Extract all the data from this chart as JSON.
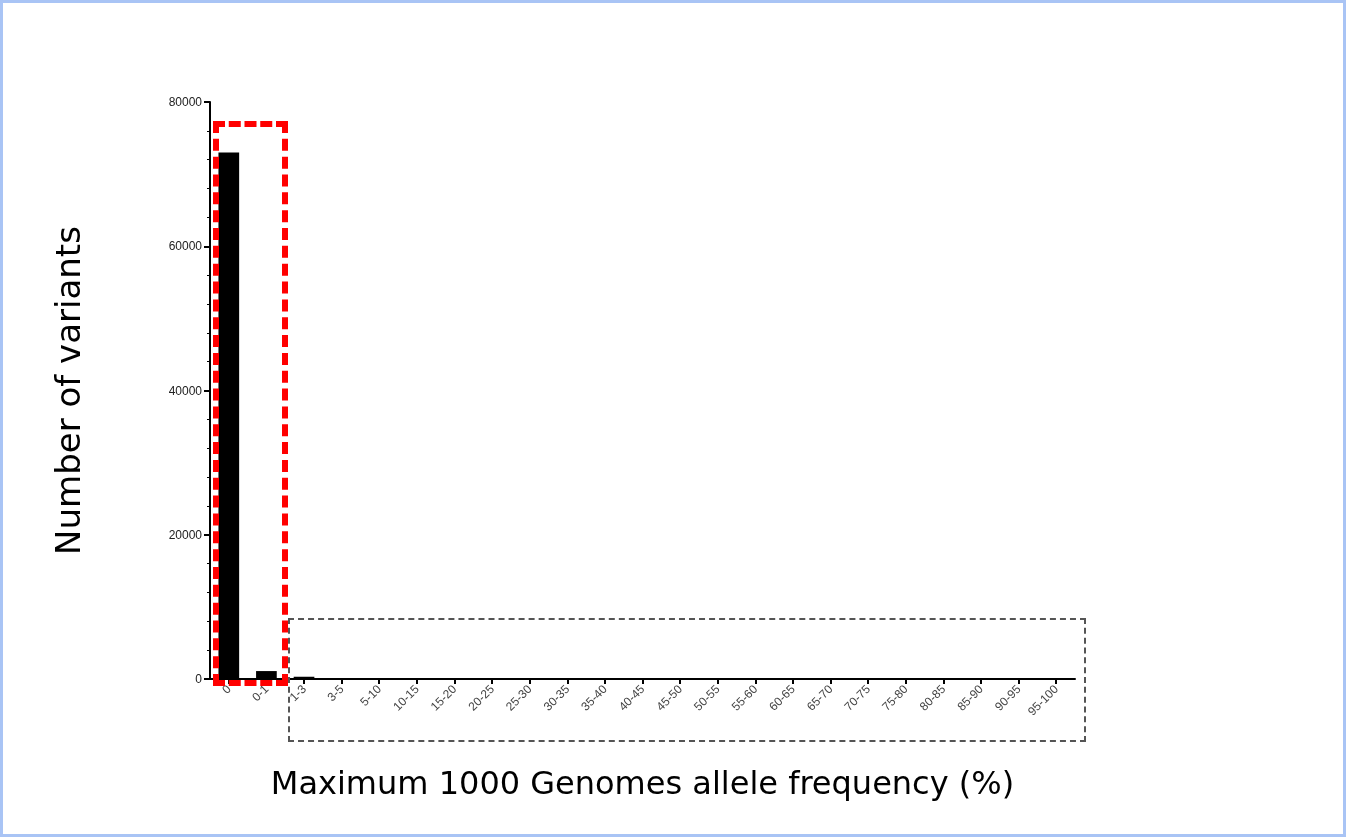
{
  "chart_data": {
    "type": "bar",
    "xlabel": "Maximum 1000 Genomes allele frequency (%)",
    "ylabel": "Number of variants",
    "categories": [
      "0",
      "0-1",
      "1-3",
      "3-5",
      "5-10",
      "10-15",
      "15-20",
      "20-25",
      "25-30",
      "30-35",
      "35-40",
      "40-45",
      "45-50",
      "50-55",
      "55-60",
      "60-65",
      "65-70",
      "70-75",
      "75-80",
      "80-85",
      "85-90",
      "90-95",
      "95-100"
    ],
    "values": [
      73000,
      1100,
      300,
      0,
      100,
      0,
      0,
      0,
      0,
      0,
      0,
      0,
      0,
      0,
      0,
      0,
      0,
      0,
      0,
      0,
      0,
      0,
      0
    ],
    "color": "#000000",
    "ylim": [
      0,
      80000
    ],
    "yticks": [
      0,
      20000,
      40000,
      60000,
      80000
    ],
    "grid": false
  }
}
